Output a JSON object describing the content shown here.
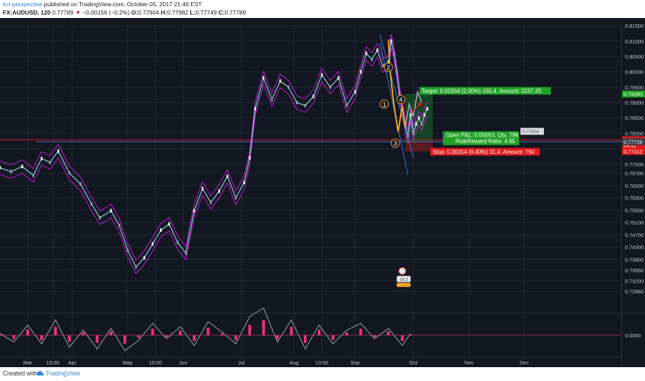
{
  "header": {
    "author": "kct-perspective",
    "published_text": "published on TradingView.com, October 05, 2017 21:46 EST",
    "symbol": "FX:AUDUSD, 120",
    "last": "0.77789",
    "change": "−0.00156 (−0.2%)",
    "open_label": "O:",
    "open": "0.77904",
    "high_label": "H:",
    "high": "0.77982",
    "low_label": "L:",
    "low": "0.77749",
    "close_label": "C:",
    "close": "0.77789"
  },
  "footer": {
    "created_with": "Created with",
    "brand": "TradingView"
  },
  "colors": {
    "background": "#131722",
    "grid": "#252a36",
    "price_line": "#9fb2c8",
    "envelope": "#c020d0",
    "ma_fast": "#34c3c9",
    "candle_up": "#ffffff",
    "candle_down": "#9aa3ad",
    "oscillator_line": "#a0a8b4",
    "oscillator_histogram": "#e8357a",
    "target": "#1fa324",
    "stop": "#e01b1b",
    "wave": "#f5a623",
    "trendline": "#3d7bd9"
  },
  "chart_data": {
    "type": "line",
    "title": "",
    "xlabel": "",
    "ylabel": "",
    "symbol": "FX:AUDUSD",
    "interval": "120",
    "ylim": [
      0.7215,
      0.8175
    ],
    "grid": true,
    "x_tick_labels": [
      "Mar",
      "13:00",
      "Apr",
      "May",
      "13:00",
      "Jun",
      "Jul",
      "Aug",
      "13:00",
      "Sep",
      "Oct",
      "Nov",
      "Dec"
    ],
    "x_tick_positions": [
      0.0,
      0.9,
      1.6,
      3.6,
      4.6,
      5.6,
      7.7,
      9.6,
      10.6,
      11.8,
      13.9,
      15.9,
      17.9
    ],
    "x_range": [
      -1.0,
      21.4
    ],
    "y_ticks": [
      "0.81500",
      "0.81000",
      "0.80500",
      "0.80000",
      "0.79500",
      "0.79000",
      "0.78500",
      "0.78000",
      "0.77500",
      "0.77000",
      "0.76700",
      "0.76300",
      "0.75900",
      "0.75500",
      "0.75100",
      "0.74700",
      "0.74300",
      "0.73900",
      "0.73550",
      "0.73200",
      "0.72860"
    ],
    "y_tick_values": [
      0.815,
      0.81,
      0.805,
      0.8,
      0.795,
      0.79,
      0.785,
      0.78,
      0.775,
      0.77,
      0.767,
      0.763,
      0.759,
      0.755,
      0.751,
      0.747,
      0.743,
      0.739,
      0.7355,
      0.732,
      0.7286
    ],
    "series": [
      {
        "x": [
          -1.0,
          -0.6,
          -0.2,
          0.2,
          0.5,
          0.8,
          1.1,
          1.5,
          1.9,
          2.3,
          2.6,
          3.0,
          3.3,
          3.6,
          3.9,
          4.2,
          4.5,
          4.8,
          5.1,
          5.4,
          5.7,
          6.0,
          6.3,
          6.6,
          6.9,
          7.2,
          7.5,
          7.8,
          8.0,
          8.2,
          8.5,
          8.8,
          9.1,
          9.4,
          9.7,
          10.0,
          10.3,
          10.6,
          10.9,
          11.2,
          11.5,
          11.8,
          12.0,
          12.2,
          12.4,
          12.6,
          12.8,
          13.0,
          13.1,
          13.2,
          13.3,
          13.4,
          13.5,
          13.6,
          13.7,
          13.8,
          13.9,
          14.0,
          14.1,
          14.2,
          14.3,
          14.4
        ],
        "values": [
          0.7688,
          0.7675,
          0.7692,
          0.7663,
          0.7718,
          0.7705,
          0.7742,
          0.7671,
          0.7635,
          0.757,
          0.7525,
          0.7548,
          0.75,
          0.742,
          0.7365,
          0.7395,
          0.744,
          0.7485,
          0.7505,
          0.7445,
          0.741,
          0.7548,
          0.762,
          0.7575,
          0.7612,
          0.766,
          0.759,
          0.764,
          0.772,
          0.788,
          0.798,
          0.791,
          0.797,
          0.795,
          0.79,
          0.789,
          0.792,
          0.799,
          0.795,
          0.798,
          0.789,
          0.7935,
          0.8,
          0.806,
          0.804,
          0.807,
          0.802,
          0.803,
          0.81,
          0.806,
          0.8,
          0.793,
          0.788,
          0.783,
          0.779,
          0.786,
          0.78,
          0.783,
          0.785,
          0.783,
          0.786,
          0.788
        ]
      },
      {
        "name": "",
        "x": [
          -1.0,
          -0.5,
          0.0,
          0.5,
          1.0,
          1.5,
          2.0,
          2.5,
          3.0,
          3.5,
          4.0,
          4.5,
          5.0,
          5.5,
          6.0,
          6.5,
          7.0,
          7.5,
          8.0,
          8.5,
          9.0,
          9.5,
          10.0,
          10.5,
          11.0,
          11.5,
          12.0,
          12.5,
          13.0,
          13.5,
          13.8
        ],
        "values": [
          0.0001,
          -0.0004,
          0.0006,
          -0.0005,
          0.0009,
          -0.0007,
          0.0003,
          -0.0008,
          0.0004,
          -0.0009,
          -0.0003,
          0.0007,
          -0.0002,
          0.0005,
          -0.0006,
          0.0008,
          0.0002,
          -0.0005,
          0.0011,
          0.0016,
          -0.0004,
          0.0009,
          -0.0008,
          0.0006,
          -0.0005,
          0.0003,
          0.0007,
          -0.0002,
          0.0004,
          -0.0006,
          0.0001
        ]
      }
    ],
    "oscillator_ylim": [
      -0.0022,
      0.0022
    ],
    "oscillator_tick": "0.0000",
    "oscillator_tick_value": 0,
    "price_tags": [
      {
        "label": "0.79280",
        "value": 0.7928,
        "color": "#1fa324"
      },
      {
        "label": "0.77789",
        "value": 0.77789,
        "color": "#e01b1b"
      },
      {
        "label": "14:11",
        "value": 0.77615,
        "color": "#e01b1b"
      },
      {
        "label": "0.77726",
        "value": 0.77726,
        "color": "#3a3f4c"
      },
      {
        "label": "0.77412",
        "value": 0.77412,
        "color": "#e01b1b"
      }
    ],
    "horizontal_lines": [
      {
        "value": 0.77726,
        "x_start": 0.3,
        "color": "#3d7bd9"
      },
      {
        "value": 0.77789,
        "x_start": -1.0,
        "color": "#e01b1b"
      }
    ],
    "trendlines": [
      {
        "x1": 12.7,
        "y1": 0.8095,
        "x2": 13.7,
        "y2": 0.7665,
        "color": "#3d7bd9"
      },
      {
        "x1": 12.7,
        "y1": 0.812,
        "x2": 13.9,
        "y2": 0.772,
        "color": "#3d7bd9"
      }
    ],
    "elliott_waves": [
      {
        "label": "1",
        "x": 12.85,
        "y": 0.7895
      },
      {
        "label": "2",
        "x": 13.0,
        "y": 0.8015
      },
      {
        "label": "3",
        "x": 13.25,
        "y": 0.7768
      },
      {
        "label": "4",
        "x": 13.45,
        "y": 0.791
      }
    ],
    "wave_path": {
      "x": [
        13.0,
        13.05,
        13.2,
        13.35,
        13.5,
        13.6
      ],
      "values": [
        0.8105,
        0.801,
        0.789,
        0.7805,
        0.789,
        0.782
      ]
    },
    "projection": {
      "x": [
        13.6,
        13.75,
        13.9,
        14.05,
        14.2
      ],
      "values": [
        0.782,
        0.7895,
        0.7855,
        0.7935,
        0.79
      ]
    },
    "position": {
      "x_start": 13.6,
      "x_end": 14.6,
      "entry": 0.77726,
      "target": 0.7928,
      "stop": 0.77412,
      "target_label": "Target: 0.01554 (2.00%) 155.4, Amount: 2237.25",
      "stop_label": "Stop: 0.00314 (0.40%) 31.4, Amount: 750",
      "pnl_label": "Open P&L: 0.00063, Qty: 796",
      "rr_label": "Risk/Reward Ratio: 4.95",
      "side_label": "0.77604"
    },
    "event_badge": {
      "label": "10.2",
      "x": 13.5,
      "y": 0.7325
    }
  }
}
